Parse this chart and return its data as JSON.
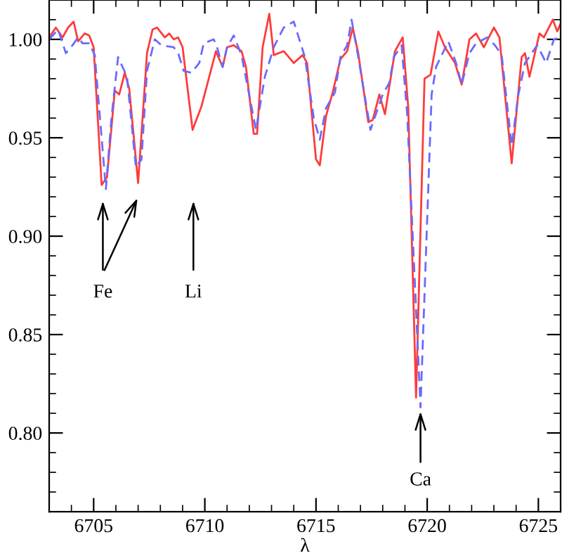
{
  "chart_data": {
    "type": "line",
    "xlabel": "λ",
    "xlim": [
      6703,
      6726
    ],
    "xticks": [
      6705,
      6710,
      6715,
      6720,
      6725
    ],
    "ylim": [
      0.76,
      1.02
    ],
    "yticks": [
      {
        "value": 0.8,
        "label": "0.80"
      },
      0.85,
      {
        "value": 0.9,
        "label": "0.90"
      },
      0.95,
      {
        "value": 1.0,
        "label": "1.00"
      }
    ],
    "grid": false,
    "legend": false,
    "marker": "none",
    "series": [
      {
        "color": "#ff3b3b",
        "line_style": "solid",
        "x": [
          6703.0,
          6703.3,
          6703.6,
          6703.85,
          6704.1,
          6704.3,
          6704.6,
          6704.8,
          6705.0,
          6705.36,
          6705.6,
          6705.95,
          6706.15,
          6706.4,
          6706.6,
          6707.0,
          6707.4,
          6707.65,
          6707.85,
          6708.2,
          6708.4,
          6708.6,
          6708.8,
          6709.0,
          6709.45,
          6709.85,
          6710.5,
          6710.8,
          6711.0,
          6711.3,
          6711.65,
          6711.85,
          6712.2,
          6712.35,
          6712.6,
          6712.9,
          6713.1,
          6713.55,
          6714.0,
          6714.4,
          6714.6,
          6715.0,
          6715.17,
          6715.45,
          6715.75,
          6716.1,
          6716.4,
          6716.65,
          6716.9,
          6717.35,
          6717.55,
          6717.85,
          6718.1,
          6718.55,
          6718.9,
          6719.15,
          6719.5,
          6719.88,
          6720.15,
          6720.5,
          6720.8,
          6721.25,
          6721.55,
          6721.9,
          6722.2,
          6722.55,
          6723.0,
          6723.25,
          6723.8,
          6724.25,
          6724.4,
          6724.6,
          6725.05,
          6725.25,
          6725.65,
          6725.85,
          6726.0
        ],
        "values": [
          1.001,
          1.006,
          1.001,
          1.006,
          1.009,
          0.999,
          1.003,
          1.002,
          0.996,
          0.926,
          0.93,
          0.974,
          0.972,
          0.983,
          0.975,
          0.927,
          0.993,
          1.005,
          1.006,
          1.001,
          1.003,
          1.0,
          1.001,
          0.996,
          0.954,
          0.966,
          0.994,
          0.986,
          0.996,
          0.997,
          0.994,
          0.986,
          0.952,
          0.952,
          0.996,
          1.013,
          0.992,
          0.994,
          0.988,
          0.992,
          0.988,
          0.939,
          0.936,
          0.961,
          0.973,
          0.99,
          0.994,
          1.006,
          0.993,
          0.958,
          0.959,
          0.972,
          0.962,
          0.994,
          1.001,
          0.965,
          0.818,
          0.98,
          0.982,
          1.004,
          0.996,
          0.988,
          0.977,
          1.0,
          1.003,
          0.996,
          1.006,
          1.001,
          0.937,
          0.991,
          0.993,
          0.981,
          1.003,
          1.001,
          1.01,
          1.004,
          1.008
        ]
      },
      {
        "color": "#6a6aff",
        "line_style": "dashed",
        "x": [
          6703.0,
          6703.4,
          6703.75,
          6704.05,
          6704.3,
          6704.5,
          6704.8,
          6705.05,
          6705.55,
          6705.8,
          6706.1,
          6706.5,
          6706.9,
          6707.15,
          6707.4,
          6707.75,
          6708.05,
          6708.6,
          6708.8,
          6709.05,
          6709.4,
          6709.75,
          6709.95,
          6710.4,
          6710.55,
          6710.8,
          6711.0,
          6711.3,
          6711.65,
          6712.3,
          6712.7,
          6713.1,
          6713.55,
          6714.0,
          6714.5,
          6714.9,
          6715.17,
          6715.45,
          6715.85,
          6716.1,
          6716.4,
          6716.6,
          6716.9,
          6717.45,
          6718.0,
          6718.3,
          6718.5,
          6718.85,
          6719.1,
          6719.7,
          6720.2,
          6720.4,
          6720.95,
          6721.3,
          6721.55,
          6721.9,
          6722.2,
          6722.7,
          6723.05,
          6723.35,
          6723.8,
          6724.1,
          6724.4,
          6724.95,
          6725.35,
          6725.7,
          6726.0
        ],
        "values": [
          1.0,
          1.005,
          0.993,
          0.997,
          1.001,
          0.998,
          0.998,
          0.992,
          0.924,
          0.96,
          0.991,
          0.981,
          0.935,
          0.939,
          0.984,
          1.0,
          0.997,
          0.996,
          0.993,
          0.984,
          0.983,
          0.988,
          0.998,
          1.0,
          0.996,
          0.986,
          0.996,
          1.002,
          0.992,
          0.954,
          0.981,
          0.996,
          1.006,
          1.009,
          0.991,
          0.96,
          0.949,
          0.965,
          0.973,
          0.991,
          0.997,
          1.01,
          0.991,
          0.954,
          0.972,
          0.978,
          0.991,
          0.997,
          0.962,
          0.813,
          0.972,
          0.986,
          0.999,
          0.988,
          0.977,
          0.993,
          0.998,
          1.001,
          0.997,
          0.992,
          0.946,
          0.972,
          0.988,
          0.997,
          0.988,
          1.0,
          1.001
        ]
      }
    ],
    "annotations": [
      "Fe",
      "Li",
      {
        "text": "Ca",
        "x": 6719.7,
        "y": 0.813
      }
    ]
  }
}
